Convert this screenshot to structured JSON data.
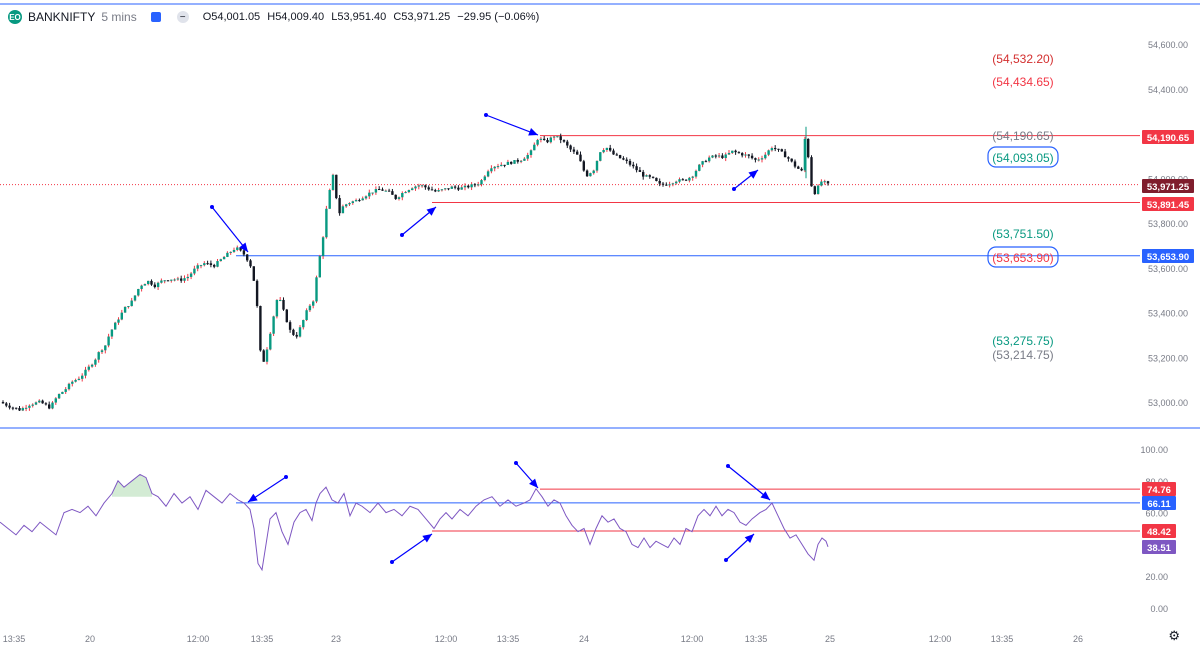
{
  "header": {
    "symbol": "BANKNIFTY",
    "timeframe": "5 mins",
    "open": "O54,001.05",
    "high": "H54,009.40",
    "low": "L53,951.40",
    "close": "C53,971.25",
    "change": "−29.95 (−0.06%)",
    "logo_text": "EO"
  },
  "chart_data": [
    {
      "type": "candlestick",
      "title": "BANKNIFTY 5 mins",
      "xlabels": [
        "13:35",
        "20",
        "12:00",
        "13:35",
        "23",
        "12:00",
        "13:35",
        "24",
        "12:00",
        "13:35",
        "25",
        "12:00",
        "13:35",
        "26"
      ],
      "yticks": [
        53000,
        53200,
        53400,
        53600,
        53800,
        54000,
        54200,
        54400,
        54600
      ],
      "ytick_labels": [
        "53,000.00",
        "53,200.00",
        "53,400.00",
        "53,600.00",
        "53,800.00",
        "54,000.00",
        "54,200.00",
        "54,400.00",
        "54,600.00"
      ],
      "ylim": [
        52940,
        54660
      ],
      "grid": false,
      "path_points": [
        [
          0,
          53000
        ],
        [
          10,
          52980
        ],
        [
          20,
          52965
        ],
        [
          30,
          52990
        ],
        [
          40,
          53000
        ],
        [
          50,
          52975
        ],
        [
          58,
          53030
        ],
        [
          65,
          53055
        ],
        [
          72,
          53090
        ],
        [
          80,
          53110
        ],
        [
          88,
          53150
        ],
        [
          95,
          53190
        ],
        [
          100,
          53230
        ],
        [
          105,
          53250
        ],
        [
          110,
          53310
        ],
        [
          118,
          53370
        ],
        [
          125,
          53420
        ],
        [
          132,
          53450
        ],
        [
          140,
          53520
        ],
        [
          148,
          53540
        ],
        [
          155,
          53520
        ],
        [
          163,
          53545
        ],
        [
          172,
          53550
        ],
        [
          180,
          53545
        ],
        [
          188,
          53560
        ],
        [
          196,
          53600
        ],
        [
          204,
          53620
        ],
        [
          214,
          53610
        ],
        [
          222,
          53640
        ],
        [
          230,
          53670
        ],
        [
          236,
          53690
        ],
        [
          244,
          53660
        ],
        [
          250,
          53620
        ],
        [
          256,
          53500
        ],
        [
          260,
          53230
        ],
        [
          264,
          53180
        ],
        [
          268,
          53260
        ],
        [
          272,
          53350
        ],
        [
          278,
          53480
        ],
        [
          284,
          53400
        ],
        [
          290,
          53320
        ],
        [
          296,
          53290
        ],
        [
          302,
          53350
        ],
        [
          308,
          53420
        ],
        [
          314,
          53460
        ],
        [
          318,
          53610
        ],
        [
          322,
          53700
        ],
        [
          326,
          53850
        ],
        [
          330,
          53950
        ],
        [
          334,
          54030
        ],
        [
          338,
          53830
        ],
        [
          342,
          53870
        ],
        [
          348,
          53890
        ],
        [
          356,
          53900
        ],
        [
          364,
          53920
        ],
        [
          372,
          53940
        ],
        [
          380,
          53950
        ],
        [
          388,
          53940
        ],
        [
          396,
          53910
        ],
        [
          404,
          53940
        ],
        [
          412,
          53960
        ],
        [
          420,
          53970
        ],
        [
          428,
          53955
        ],
        [
          436,
          53940
        ],
        [
          444,
          53950
        ],
        [
          452,
          53960
        ],
        [
          460,
          53955
        ],
        [
          470,
          53965
        ],
        [
          480,
          53980
        ],
        [
          490,
          54050
        ],
        [
          500,
          54060
        ],
        [
          510,
          54070
        ],
        [
          520,
          54080
        ],
        [
          530,
          54110
        ],
        [
          538,
          54180
        ],
        [
          546,
          54160
        ],
        [
          554,
          54190
        ],
        [
          562,
          54170
        ],
        [
          570,
          54130
        ],
        [
          578,
          54100
        ],
        [
          586,
          54010
        ],
        [
          594,
          54040
        ],
        [
          600,
          54120
        ],
        [
          606,
          54140
        ],
        [
          612,
          54110
        ],
        [
          620,
          54090
        ],
        [
          628,
          54070
        ],
        [
          636,
          54040
        ],
        [
          644,
          54010
        ],
        [
          652,
          54000
        ],
        [
          660,
          53970
        ],
        [
          668,
          53975
        ],
        [
          676,
          53990
        ],
        [
          684,
          53990
        ],
        [
          692,
          54010
        ],
        [
          700,
          54060
        ],
        [
          708,
          54090
        ],
        [
          716,
          54100
        ],
        [
          724,
          54095
        ],
        [
          732,
          54120
        ],
        [
          740,
          54110
        ],
        [
          748,
          54100
        ],
        [
          756,
          54080
        ],
        [
          764,
          54100
        ],
        [
          772,
          54140
        ],
        [
          780,
          54120
        ],
        [
          788,
          54090
        ],
        [
          796,
          54050
        ],
        [
          802,
          54030
        ],
        [
          806,
          54230
        ],
        [
          810,
          53990
        ],
        [
          814,
          53930
        ],
        [
          818,
          53960
        ],
        [
          822,
          53990
        ],
        [
          826,
          53975
        ],
        [
          828,
          53971.25
        ]
      ]
    },
    {
      "type": "line",
      "series_name": "",
      "yticks": [
        0,
        20,
        40,
        60,
        80,
        100
      ],
      "ytick_labels": [
        "0.00",
        "20.00",
        "40.00",
        "60.00",
        "80.00",
        "100.00"
      ],
      "ylim": [
        -5,
        105
      ],
      "path_points": [
        [
          0,
          54
        ],
        [
          8,
          50
        ],
        [
          16,
          46
        ],
        [
          24,
          52
        ],
        [
          32,
          48
        ],
        [
          40,
          54
        ],
        [
          48,
          50
        ],
        [
          56,
          46
        ],
        [
          64,
          60
        ],
        [
          72,
          62
        ],
        [
          80,
          60
        ],
        [
          88,
          64
        ],
        [
          96,
          58
        ],
        [
          104,
          66
        ],
        [
          112,
          72
        ],
        [
          118,
          80
        ],
        [
          124,
          76
        ],
        [
          132,
          80
        ],
        [
          140,
          84
        ],
        [
          146,
          82
        ],
        [
          152,
          72
        ],
        [
          158,
          70
        ],
        [
          166,
          64
        ],
        [
          174,
          72
        ],
        [
          182,
          66
        ],
        [
          190,
          70
        ],
        [
          198,
          62
        ],
        [
          206,
          74
        ],
        [
          214,
          70
        ],
        [
          222,
          66
        ],
        [
          230,
          72
        ],
        [
          238,
          68
        ],
        [
          244,
          66
        ],
        [
          250,
          62
        ],
        [
          254,
          50
        ],
        [
          258,
          28
        ],
        [
          262,
          24
        ],
        [
          266,
          40
        ],
        [
          270,
          56
        ],
        [
          276,
          60
        ],
        [
          282,
          48
        ],
        [
          288,
          40
        ],
        [
          294,
          54
        ],
        [
          300,
          60
        ],
        [
          306,
          62
        ],
        [
          312,
          55
        ],
        [
          316,
          66
        ],
        [
          320,
          72
        ],
        [
          326,
          76
        ],
        [
          332,
          68
        ],
        [
          338,
          66
        ],
        [
          344,
          72
        ],
        [
          350,
          58
        ],
        [
          356,
          66
        ],
        [
          362,
          64
        ],
        [
          370,
          60
        ],
        [
          378,
          66
        ],
        [
          386,
          60
        ],
        [
          394,
          62
        ],
        [
          402,
          58
        ],
        [
          410,
          64
        ],
        [
          418,
          62
        ],
        [
          426,
          56
        ],
        [
          434,
          50
        ],
        [
          440,
          56
        ],
        [
          446,
          60
        ],
        [
          452,
          56
        ],
        [
          460,
          62
        ],
        [
          468,
          58
        ],
        [
          476,
          64
        ],
        [
          484,
          68
        ],
        [
          492,
          70
        ],
        [
          500,
          64
        ],
        [
          508,
          68
        ],
        [
          516,
          64
        ],
        [
          524,
          66
        ],
        [
          530,
          68
        ],
        [
          536,
          75
        ],
        [
          542,
          70
        ],
        [
          548,
          64
        ],
        [
          554,
          68
        ],
        [
          560,
          66
        ],
        [
          566,
          58
        ],
        [
          572,
          52
        ],
        [
          578,
          48
        ],
        [
          584,
          50
        ],
        [
          590,
          40
        ],
        [
          596,
          50
        ],
        [
          602,
          58
        ],
        [
          608,
          54
        ],
        [
          614,
          56
        ],
        [
          620,
          50
        ],
        [
          626,
          48
        ],
        [
          632,
          40
        ],
        [
          638,
          38
        ],
        [
          644,
          44
        ],
        [
          650,
          38
        ],
        [
          656,
          42
        ],
        [
          662,
          40
        ],
        [
          668,
          38
        ],
        [
          674,
          44
        ],
        [
          680,
          40
        ],
        [
          686,
          50
        ],
        [
          692,
          48
        ],
        [
          698,
          58
        ],
        [
          704,
          62
        ],
        [
          710,
          58
        ],
        [
          716,
          64
        ],
        [
          722,
          58
        ],
        [
          728,
          62
        ],
        [
          734,
          60
        ],
        [
          740,
          54
        ],
        [
          746,
          52
        ],
        [
          752,
          56
        ],
        [
          760,
          60
        ],
        [
          766,
          62
        ],
        [
          772,
          66
        ],
        [
          778,
          58
        ],
        [
          784,
          50
        ],
        [
          790,
          44
        ],
        [
          796,
          46
        ],
        [
          802,
          40
        ],
        [
          808,
          34
        ],
        [
          814,
          30
        ],
        [
          818,
          40
        ],
        [
          822,
          44
        ],
        [
          826,
          42
        ],
        [
          828,
          38.51
        ]
      ]
    }
  ],
  "main_levels": [
    {
      "label": "(54,532.20)",
      "value": 54532.2,
      "color": "#d32f2f"
    },
    {
      "label": "(54,434.65)",
      "value": 54434.65,
      "color": "#f23645"
    },
    {
      "label": "(54,190.65)",
      "value": 54190.65,
      "color": "#787b86"
    },
    {
      "label": "(54,093.05)",
      "value": 54093.05,
      "color": "#089981",
      "boxed": true
    },
    {
      "label": "(53,751.50)",
      "value": 53751.5,
      "color": "#089981"
    },
    {
      "label": "(53,653.90)",
      "value": 53653.9,
      "color": "#f23645",
      "boxed": true
    },
    {
      "label": "(53,275.75)",
      "value": 53275.75,
      "color": "#089981"
    },
    {
      "label": "(53,214.75)",
      "value": 53214.75,
      "color": "#787b86"
    }
  ],
  "price_tags": [
    {
      "label": "54,190.65",
      "value": 54190.65,
      "color": "#f23645"
    },
    {
      "label": "53,971.25",
      "value": 53971.25,
      "color": "#7f1d2d"
    },
    {
      "label": "53,891.45",
      "value": 53891.45,
      "color": "#f23645"
    },
    {
      "label": "53,653.90",
      "value": 53653.9,
      "color": "#2962ff"
    }
  ],
  "rsi_tags": [
    {
      "label": "74.76",
      "value": 74.76,
      "color": "#f23645"
    },
    {
      "label": "66.11",
      "value": 66.11,
      "color": "#2962ff"
    },
    {
      "label": "48.42",
      "value": 48.42,
      "color": "#f23645"
    },
    {
      "label": "38.51",
      "value": 38.51,
      "color": "#7e57c2"
    }
  ],
  "colors": {
    "up": "#089981",
    "down": "#131722",
    "wick_up": "#f23645",
    "resistance": "#f23645",
    "support": "#2962ff",
    "rsi_line": "#7e57c2",
    "arrow": "#0000ff"
  },
  "settings_icon": "gear-icon"
}
